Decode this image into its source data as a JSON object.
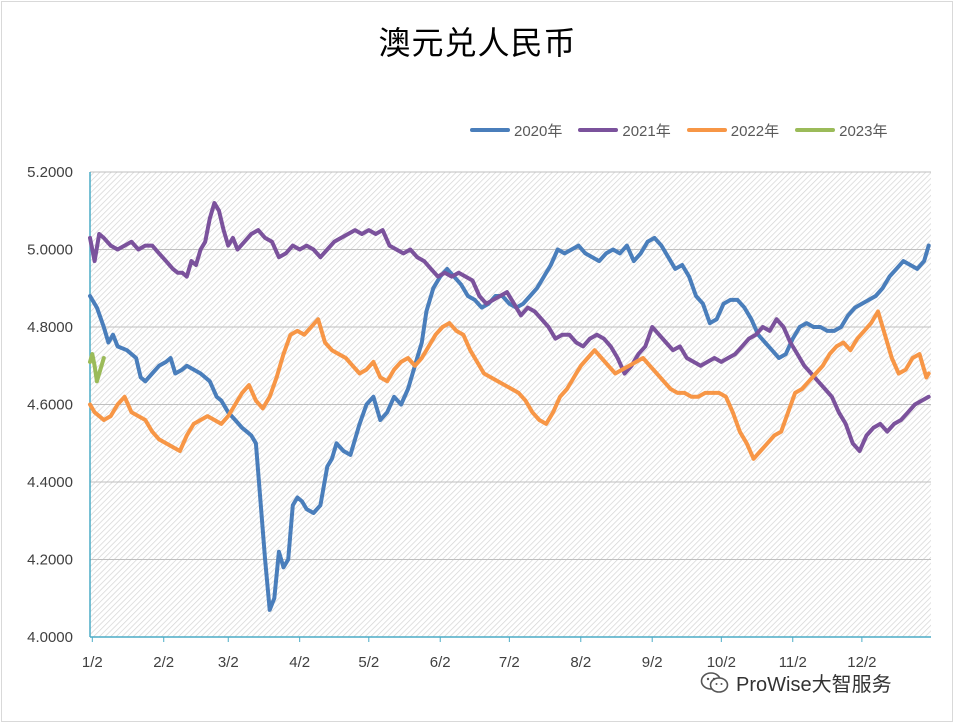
{
  "title": "澳元兑人民币",
  "watermark_text": "ProWise大智服务",
  "chart_data": {
    "type": "line",
    "title": "澳元兑人民币",
    "xlabel": "",
    "ylabel": "",
    "ylim": [
      4.0,
      5.2
    ],
    "yticks": [
      "4.0000",
      "4.2000",
      "4.4000",
      "4.6000",
      "4.8000",
      "5.0000",
      "5.2000"
    ],
    "xlim": [
      0,
      365
    ],
    "x_ticks": [
      {
        "label": "1/2",
        "day": 1
      },
      {
        "label": "2/2",
        "day": 32
      },
      {
        "label": "3/2",
        "day": 60
      },
      {
        "label": "4/2",
        "day": 91
      },
      {
        "label": "5/2",
        "day": 121
      },
      {
        "label": "6/2",
        "day": 152
      },
      {
        "label": "7/2",
        "day": 182
      },
      {
        "label": "8/2",
        "day": 213
      },
      {
        "label": "9/2",
        "day": 244
      },
      {
        "label": "10/2",
        "day": 274
      },
      {
        "label": "11/2",
        "day": 305
      },
      {
        "label": "12/2",
        "day": 335
      }
    ],
    "legend_position": "top-right",
    "series": [
      {
        "name": "2020年",
        "color": "#4a7ebb",
        "x": [
          0,
          3,
          6,
          8,
          10,
          12,
          16,
          20,
          22,
          24,
          27,
          30,
          33,
          35,
          37,
          40,
          42,
          45,
          48,
          52,
          55,
          57,
          60,
          63,
          66,
          68,
          70,
          72,
          74,
          76,
          78,
          80,
          82,
          84,
          86,
          88,
          90,
          92,
          94,
          97,
          100,
          103,
          105,
          107,
          110,
          113,
          115,
          117,
          120,
          123,
          126,
          129,
          132,
          135,
          138,
          141,
          144,
          146,
          149,
          152,
          155,
          158,
          161,
          164,
          167,
          170,
          173,
          176,
          179,
          182,
          185,
          188,
          191,
          194,
          197,
          200,
          203,
          206,
          209,
          212,
          215,
          218,
          221,
          224,
          227,
          230,
          233,
          236,
          239,
          242,
          245,
          248,
          251,
          254,
          257,
          260,
          263,
          266,
          269,
          272,
          275,
          278,
          281,
          284,
          287,
          290,
          293,
          296,
          299,
          302,
          305,
          308,
          311,
          314,
          317,
          320,
          323,
          326,
          329,
          332,
          335,
          338,
          341,
          344,
          347,
          350,
          353,
          356,
          359,
          362,
          364
        ],
        "values": [
          4.88,
          4.85,
          4.8,
          4.76,
          4.78,
          4.75,
          4.74,
          4.72,
          4.67,
          4.66,
          4.68,
          4.7,
          4.71,
          4.72,
          4.68,
          4.69,
          4.7,
          4.69,
          4.68,
          4.66,
          4.62,
          4.61,
          4.58,
          4.56,
          4.54,
          4.53,
          4.52,
          4.5,
          4.35,
          4.2,
          4.07,
          4.1,
          4.22,
          4.18,
          4.2,
          4.34,
          4.36,
          4.35,
          4.33,
          4.32,
          4.34,
          4.44,
          4.46,
          4.5,
          4.48,
          4.47,
          4.51,
          4.55,
          4.6,
          4.62,
          4.56,
          4.58,
          4.62,
          4.6,
          4.64,
          4.7,
          4.76,
          4.84,
          4.9,
          4.93,
          4.95,
          4.93,
          4.91,
          4.88,
          4.87,
          4.85,
          4.86,
          4.88,
          4.88,
          4.86,
          4.85,
          4.86,
          4.88,
          4.9,
          4.93,
          4.96,
          5.0,
          4.99,
          5.0,
          5.01,
          4.99,
          4.98,
          4.97,
          4.99,
          5.0,
          4.99,
          5.01,
          4.97,
          4.99,
          5.02,
          5.03,
          5.01,
          4.98,
          4.95,
          4.96,
          4.93,
          4.88,
          4.86,
          4.81,
          4.82,
          4.86,
          4.87,
          4.87,
          4.85,
          4.82,
          4.78,
          4.76,
          4.74,
          4.72,
          4.73,
          4.77,
          4.8,
          4.81,
          4.8,
          4.8,
          4.79,
          4.79,
          4.8,
          4.83,
          4.85,
          4.86,
          4.87,
          4.88,
          4.9,
          4.93,
          4.95,
          4.97,
          4.96,
          4.95,
          4.97,
          5.01
        ]
      },
      {
        "name": "2021年",
        "color": "#7b529c",
        "x": [
          0,
          2,
          4,
          6,
          9,
          12,
          15,
          18,
          21,
          24,
          27,
          30,
          33,
          36,
          38,
          40,
          42,
          44,
          46,
          48,
          50,
          52,
          54,
          56,
          58,
          60,
          62,
          64,
          67,
          70,
          73,
          76,
          79,
          82,
          85,
          88,
          91,
          94,
          97,
          100,
          103,
          106,
          109,
          112,
          115,
          118,
          121,
          124,
          127,
          130,
          133,
          136,
          139,
          142,
          145,
          148,
          151,
          154,
          157,
          160,
          163,
          166,
          169,
          172,
          175,
          178,
          181,
          184,
          187,
          190,
          193,
          196,
          199,
          202,
          205,
          208,
          211,
          214,
          217,
          220,
          223,
          226,
          229,
          232,
          235,
          238,
          241,
          244,
          247,
          250,
          253,
          256,
          259,
          262,
          265,
          268,
          271,
          274,
          277,
          280,
          283,
          286,
          289,
          292,
          295,
          298,
          301,
          304,
          307,
          310,
          313,
          316,
          319,
          322,
          325,
          328,
          331,
          334,
          337,
          340,
          343,
          346,
          349,
          352,
          355,
          358,
          361,
          364
        ],
        "values": [
          5.03,
          4.97,
          5.04,
          5.03,
          5.01,
          5.0,
          5.01,
          5.02,
          5.0,
          5.01,
          5.01,
          4.99,
          4.97,
          4.95,
          4.94,
          4.94,
          4.93,
          4.97,
          4.96,
          5.0,
          5.02,
          5.08,
          5.12,
          5.1,
          5.05,
          5.01,
          5.03,
          5.0,
          5.02,
          5.04,
          5.05,
          5.03,
          5.02,
          4.98,
          4.99,
          5.01,
          5.0,
          5.01,
          5.0,
          4.98,
          5.0,
          5.02,
          5.03,
          5.04,
          5.05,
          5.04,
          5.05,
          5.04,
          5.05,
          5.01,
          5.0,
          4.99,
          5.0,
          4.98,
          4.97,
          4.95,
          4.93,
          4.94,
          4.93,
          4.94,
          4.93,
          4.92,
          4.88,
          4.86,
          4.87,
          4.88,
          4.89,
          4.86,
          4.83,
          4.85,
          4.84,
          4.82,
          4.8,
          4.77,
          4.78,
          4.78,
          4.76,
          4.75,
          4.77,
          4.78,
          4.77,
          4.75,
          4.72,
          4.68,
          4.7,
          4.73,
          4.75,
          4.8,
          4.78,
          4.76,
          4.74,
          4.75,
          4.72,
          4.71,
          4.7,
          4.71,
          4.72,
          4.71,
          4.72,
          4.73,
          4.75,
          4.77,
          4.78,
          4.8,
          4.79,
          4.82,
          4.8,
          4.76,
          4.73,
          4.7,
          4.68,
          4.66,
          4.64,
          4.62,
          4.58,
          4.55,
          4.5,
          4.48,
          4.52,
          4.54,
          4.55,
          4.53,
          4.55,
          4.56,
          4.58,
          4.6,
          4.61,
          4.62
        ]
      },
      {
        "name": "2022年",
        "color": "#f79646",
        "x": [
          0,
          2,
          4,
          6,
          9,
          12,
          15,
          18,
          21,
          24,
          27,
          30,
          33,
          36,
          39,
          42,
          45,
          48,
          51,
          54,
          57,
          60,
          63,
          66,
          69,
          72,
          75,
          78,
          81,
          84,
          87,
          90,
          93,
          96,
          99,
          102,
          105,
          108,
          111,
          114,
          117,
          120,
          123,
          126,
          129,
          132,
          135,
          138,
          141,
          144,
          147,
          150,
          153,
          156,
          159,
          162,
          165,
          168,
          171,
          174,
          177,
          180,
          183,
          186,
          189,
          192,
          195,
          198,
          201,
          204,
          207,
          210,
          213,
          216,
          219,
          222,
          225,
          228,
          231,
          234,
          237,
          240,
          243,
          246,
          249,
          252,
          255,
          258,
          261,
          264,
          267,
          270,
          273,
          276,
          279,
          282,
          285,
          288,
          291,
          294,
          297,
          300,
          303,
          306,
          309,
          312,
          315,
          318,
          321,
          324,
          327,
          330,
          333,
          336,
          339,
          342,
          345,
          348,
          351,
          354,
          357,
          360,
          363,
          364
        ],
        "values": [
          4.6,
          4.58,
          4.57,
          4.56,
          4.57,
          4.6,
          4.62,
          4.58,
          4.57,
          4.56,
          4.53,
          4.51,
          4.5,
          4.49,
          4.48,
          4.52,
          4.55,
          4.56,
          4.57,
          4.56,
          4.55,
          4.57,
          4.6,
          4.63,
          4.65,
          4.61,
          4.59,
          4.62,
          4.67,
          4.73,
          4.78,
          4.79,
          4.78,
          4.8,
          4.82,
          4.76,
          4.74,
          4.73,
          4.72,
          4.7,
          4.68,
          4.69,
          4.71,
          4.67,
          4.66,
          4.69,
          4.71,
          4.72,
          4.7,
          4.72,
          4.75,
          4.78,
          4.8,
          4.81,
          4.79,
          4.78,
          4.74,
          4.71,
          4.68,
          4.67,
          4.66,
          4.65,
          4.64,
          4.63,
          4.61,
          4.58,
          4.56,
          4.55,
          4.58,
          4.62,
          4.64,
          4.67,
          4.7,
          4.72,
          4.74,
          4.72,
          4.7,
          4.68,
          4.69,
          4.7,
          4.71,
          4.72,
          4.7,
          4.68,
          4.66,
          4.64,
          4.63,
          4.63,
          4.62,
          4.62,
          4.63,
          4.63,
          4.63,
          4.62,
          4.58,
          4.53,
          4.5,
          4.46,
          4.48,
          4.5,
          4.52,
          4.53,
          4.58,
          4.63,
          4.64,
          4.66,
          4.68,
          4.7,
          4.73,
          4.75,
          4.76,
          4.74,
          4.77,
          4.79,
          4.81,
          4.84,
          4.78,
          4.72,
          4.68,
          4.69,
          4.72,
          4.73,
          4.67,
          4.68
        ]
      },
      {
        "name": "2023年",
        "color": "#9bbb59",
        "x": [
          0,
          1,
          2,
          3,
          4,
          5,
          6
        ],
        "values": [
          4.71,
          4.73,
          4.7,
          4.66,
          4.68,
          4.7,
          4.72
        ]
      }
    ]
  }
}
